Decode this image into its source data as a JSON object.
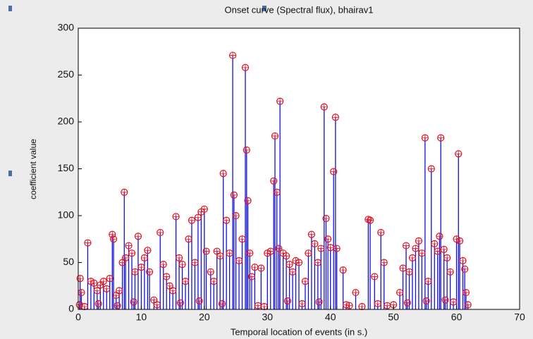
{
  "chart_data": {
    "type": "stem",
    "title": "Onset curve (Spectral flux), bhairav1",
    "xlabel": "Temporal location of events (in s.)",
    "ylabel": "coefficient value",
    "xlim": [
      0,
      70
    ],
    "xticks": [
      0,
      10,
      20,
      30,
      40,
      50,
      60,
      70
    ],
    "ylim": [
      0,
      300
    ],
    "yticks": [
      0,
      50,
      100,
      150,
      200,
      250,
      300
    ],
    "stem_color": "#1010e0",
    "marker_color": "#e01020",
    "x": [
      0.2,
      0.3,
      0.5,
      1.5,
      2,
      2.5,
      3,
      3.5,
      4,
      4.5,
      5,
      5.4,
      5.6,
      6,
      6.5,
      7,
      7.3,
      7.5,
      8,
      8.5,
      9,
      9.5,
      10,
      10.5,
      11,
      11.3,
      12,
      13,
      13.5,
      14,
      14.5,
      15,
      15.5,
      16,
      16.5,
      17,
      17.5,
      18,
      18.5,
      19,
      19.5,
      20,
      20.3,
      21,
      21.5,
      22,
      22.5,
      23,
      23.5,
      24,
      24.5,
      24.7,
      25,
      25.5,
      26,
      26.5,
      26.7,
      26.9,
      27.2,
      27.5,
      28,
      29,
      30,
      30.5,
      31,
      31.2,
      31.5,
      31.8,
      32,
      32.5,
      33,
      33.5,
      34,
      34.5,
      35,
      36,
      36.5,
      37,
      37.5,
      38,
      38.5,
      39,
      39.3,
      39.6,
      40,
      40.5,
      40.8,
      41,
      42,
      44,
      46,
      46.3,
      47,
      48,
      48.5,
      50,
      51,
      51.5,
      52,
      52.5,
      53,
      53.5,
      54,
      54.5,
      55,
      55.5,
      56,
      56.5,
      57,
      57.3,
      57.5,
      58,
      58.5,
      59,
      60,
      60.3,
      60.5,
      61,
      61.3,
      61.5,
      1,
      3.2,
      6.2,
      8.8,
      12.5,
      16.2,
      19.2,
      22.8,
      28.5,
      29.5,
      33.2,
      35.5,
      38.2,
      42.5,
      43,
      45,
      47.5,
      49,
      52.2,
      55.2,
      58.2,
      59.5,
      61.8
    ],
    "values": [
      5,
      33,
      18,
      71,
      30,
      28,
      20,
      26,
      30,
      22,
      33,
      80,
      75,
      15,
      20,
      50,
      125,
      55,
      68,
      60,
      40,
      78,
      45,
      55,
      63,
      40,
      10,
      82,
      48,
      35,
      25,
      20,
      99,
      55,
      48,
      30,
      75,
      95,
      50,
      98,
      104,
      107,
      62,
      40,
      30,
      62,
      57,
      145,
      95,
      60,
      271,
      122,
      100,
      52,
      75,
      258,
      170,
      116,
      60,
      35,
      45,
      44,
      60,
      62,
      137,
      185,
      125,
      65,
      222,
      60,
      57,
      48,
      40,
      52,
      50,
      30,
      60,
      80,
      70,
      50,
      65,
      216,
      97,
      75,
      66,
      147,
      205,
      65,
      42,
      18,
      96,
      95,
      35,
      82,
      50,
      5,
      18,
      44,
      68,
      40,
      55,
      65,
      73,
      60,
      183,
      30,
      150,
      70,
      62,
      78,
      183,
      64,
      55,
      40,
      75,
      166,
      73,
      52,
      43,
      18,
      3,
      6,
      4,
      8,
      5,
      7,
      9,
      6,
      4,
      3,
      9,
      6,
      8,
      5,
      4,
      3,
      6,
      4,
      7,
      9,
      10,
      8,
      5
    ]
  }
}
